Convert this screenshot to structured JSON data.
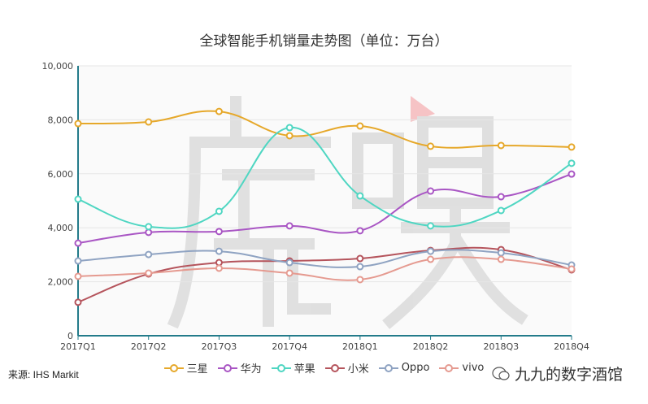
{
  "chart_data": {
    "type": "line",
    "title": "全球智能手机销量走势图（单位：万台）",
    "categories": [
      "2017Q1",
      "2017Q2",
      "2017Q3",
      "2017Q4",
      "2018Q1",
      "2018Q2",
      "2018Q3",
      "2018Q4"
    ],
    "ylim": [
      0,
      10000
    ],
    "yticks": [
      "0",
      "2,000",
      "4,000",
      "6,000",
      "8,000",
      "10,000"
    ],
    "yticks_values": [
      0,
      2000,
      4000,
      6000,
      8000,
      10000
    ],
    "grid": true,
    "smooth": true,
    "legend_position": "bottom",
    "series": [
      {
        "name": "三星",
        "color": "#e6a82a",
        "values": [
          7860,
          7920,
          8310,
          7410,
          7770,
          7020,
          7050,
          6990
        ]
      },
      {
        "name": "华为",
        "color": "#a956c4",
        "values": [
          3430,
          3830,
          3860,
          4070,
          3890,
          5360,
          5150,
          5990
        ]
      },
      {
        "name": "苹果",
        "color": "#4fd6c2",
        "values": [
          5060,
          4040,
          4610,
          7710,
          5180,
          4070,
          4640,
          6390
        ]
      },
      {
        "name": "小米",
        "color": "#b5545c",
        "values": [
          1240,
          2290,
          2710,
          2770,
          2860,
          3160,
          3190,
          2440
        ]
      },
      {
        "name": "Oppo",
        "color": "#8fa3c2",
        "values": [
          2770,
          3010,
          3130,
          2710,
          2560,
          3130,
          3070,
          2620
        ]
      },
      {
        "name": "vivo",
        "color": "#e59a90",
        "values": [
          2200,
          2320,
          2500,
          2320,
          2080,
          2830,
          2830,
          2470
        ]
      }
    ]
  },
  "source": "来源: IHS Markit",
  "brand": "九九的数字酒馆",
  "watermark": "虎嗅",
  "axis_color": "#237b8a"
}
